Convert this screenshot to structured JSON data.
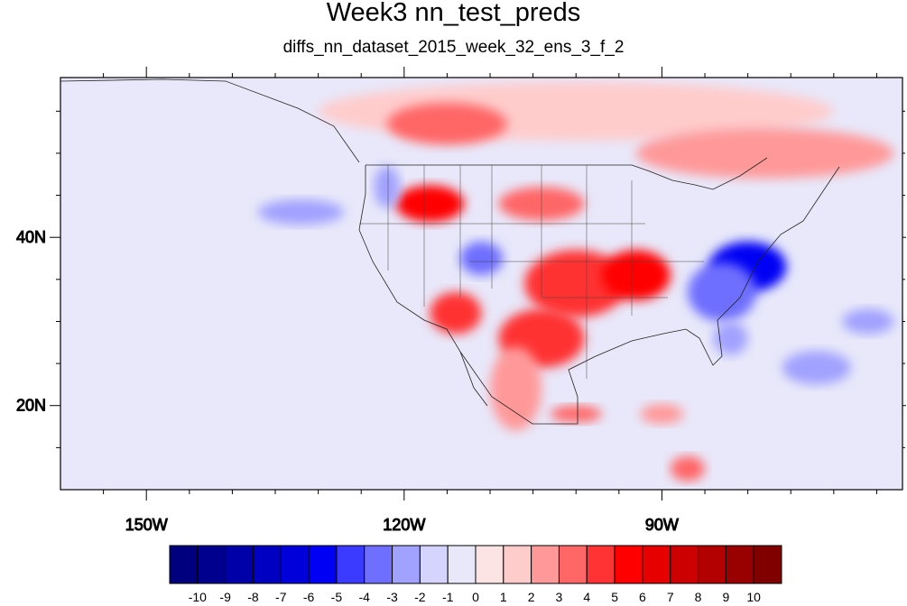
{
  "title": "Week3 nn_test_preds",
  "subtitle": "diffs_nn_dataset_2015_week_32_ens_3_f_2",
  "map": {
    "lon_range": [
      -160,
      -62
    ],
    "lat_range": [
      10,
      59
    ],
    "lon_ticks": [
      {
        "lon": -150,
        "label": "150W"
      },
      {
        "lon": -120,
        "label": "120W"
      },
      {
        "lon": -90,
        "label": "90W"
      }
    ],
    "lat_ticks": [
      {
        "lat": 40,
        "label": "40N"
      },
      {
        "lat": 20,
        "label": "20N"
      }
    ],
    "blobs": [
      {
        "lon": -100,
        "lat": 55,
        "rx": 30,
        "ry": 3.5,
        "level": 2
      },
      {
        "lon": -78,
        "lat": 50,
        "rx": 15,
        "ry": 3,
        "level": 3
      },
      {
        "lon": -115,
        "lat": 53.5,
        "rx": 7,
        "ry": 2.5,
        "level": 4
      },
      {
        "lon": -117,
        "lat": 44,
        "rx": 4,
        "ry": 2.2,
        "level": 6
      },
      {
        "lon": -104,
        "lat": 44,
        "rx": 5,
        "ry": 2,
        "level": 4
      },
      {
        "lon": -100,
        "lat": 34.5,
        "rx": 6,
        "ry": 4,
        "level": 5
      },
      {
        "lon": -93,
        "lat": 35.5,
        "rx": 4,
        "ry": 3,
        "level": 6
      },
      {
        "lon": -104,
        "lat": 28,
        "rx": 5,
        "ry": 3.5,
        "level": 5
      },
      {
        "lon": -114,
        "lat": 31,
        "rx": 3,
        "ry": 2.5,
        "level": 5
      },
      {
        "lon": -107,
        "lat": 22,
        "rx": 3,
        "ry": 5,
        "level": 3
      },
      {
        "lon": -100,
        "lat": 19,
        "rx": 3,
        "ry": 1,
        "level": 4
      },
      {
        "lon": -90,
        "lat": 19,
        "rx": 2.5,
        "ry": 1.2,
        "level": 3
      },
      {
        "lon": -87,
        "lat": 12.5,
        "rx": 2,
        "ry": 1.5,
        "level": 4
      },
      {
        "lon": -80,
        "lat": 36.5,
        "rx": 4.5,
        "ry": 3,
        "level": -5
      },
      {
        "lon": -83,
        "lat": 33.5,
        "rx": 4,
        "ry": 3.5,
        "level": -3
      },
      {
        "lon": -82,
        "lat": 28,
        "rx": 2,
        "ry": 2,
        "level": -2
      },
      {
        "lon": -111,
        "lat": 37.5,
        "rx": 2.5,
        "ry": 2,
        "level": -3
      },
      {
        "lon": -122,
        "lat": 46,
        "rx": 1.5,
        "ry": 2.5,
        "level": -2
      },
      {
        "lon": -132,
        "lat": 43,
        "rx": 5,
        "ry": 1.5,
        "level": -2
      },
      {
        "lon": -72,
        "lat": 24.5,
        "rx": 4,
        "ry": 2,
        "level": -2
      },
      {
        "lon": -66,
        "lat": 30,
        "rx": 3,
        "ry": 1.5,
        "level": -2
      }
    ]
  },
  "colorbar": {
    "labels": [
      "-10",
      "-9",
      "-8",
      "-7",
      "-6",
      "-5",
      "-4",
      "-3",
      "-2",
      "-1",
      "0",
      "1",
      "2",
      "3",
      "4",
      "5",
      "6",
      "7",
      "8",
      "9",
      "10"
    ],
    "colors": [
      "#00007f",
      "#00008f",
      "#0000a8",
      "#0000c2",
      "#0000db",
      "#0000f5",
      "#3b3bff",
      "#6e6eff",
      "#a1a1ff",
      "#d4d4ff",
      "#e8e8fa",
      "#fde4e4",
      "#ffcccc",
      "#ff9999",
      "#ff6666",
      "#ff3333",
      "#ff0000",
      "#e60000",
      "#cc0000",
      "#b30000",
      "#990000",
      "#800000"
    ]
  }
}
